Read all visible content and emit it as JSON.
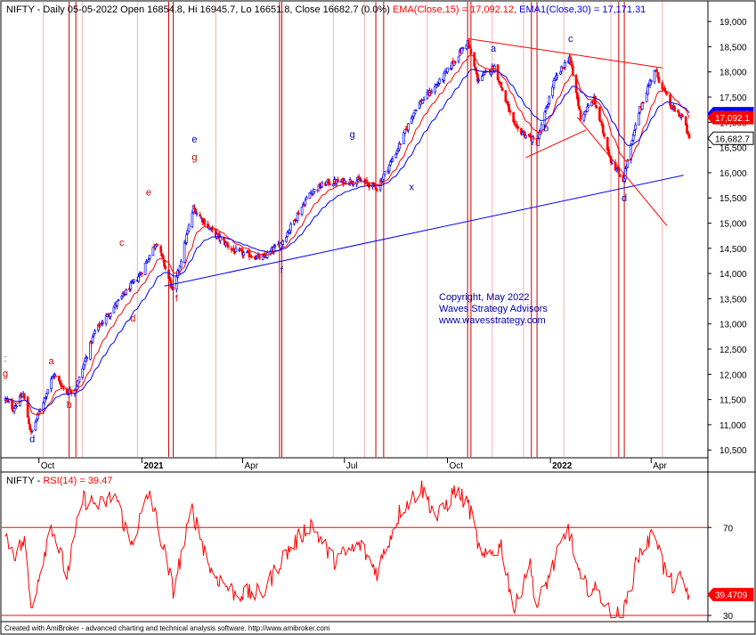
{
  "main_header": {
    "symbol": "NIFTY",
    "text": " - Daily 05-05-2022 Open 16854.8, Hi 16945.7, Lo 16651.8, Close 16682.7 (0.0%) ",
    "ema15_text": "EMA(Close,15) = 17,092.12,",
    "ema30_text": " EMA1(Close,30) = 17,171.31"
  },
  "rsi_header": {
    "symbol": "NIFTY",
    "sep": " - ",
    "rsi_text": "RSI(14) = 39.47"
  },
  "copyright": [
    "Copyright, May 2022",
    "Waves Strategy Advisors",
    "www.wavesstrategy.com"
  ],
  "footer": "Created with AmiBroker - advanced charting and technical analysis software. http://www.amibroker.com",
  "colors": {
    "up_candle": "#0000ff",
    "down_candle": "#ff0000",
    "ema15": "#ff0000",
    "ema30": "#0000ff",
    "rsi": "#ff0000",
    "cycle_line": "#cc0000",
    "wave_label_red": "#cc0000",
    "wave_label_blue": "#0000aa"
  },
  "chart_data": [
    {
      "type": "candlestick",
      "title": "NIFTY - Daily 05-05-2022 Open 16854.8, Hi 16945.7, Lo 16651.8, Close 16682.7 (0.0%)",
      "x_ticks": [
        "Oct",
        "2021",
        "Apr",
        "Jul",
        "Oct",
        "2022",
        "Apr"
      ],
      "y_ticks": [
        10500,
        11000,
        11500,
        12000,
        12500,
        13000,
        13500,
        14000,
        14500,
        15000,
        15500,
        16000,
        16500,
        17000,
        17500,
        18000,
        18500,
        19000
      ],
      "y_tick_labels": [
        "10,500",
        "11,000",
        "11,500",
        "12,000",
        "12,500",
        "13,000",
        "13,500",
        "14,000",
        "14,500",
        "15,000",
        "15,500",
        "16,000",
        "16,500",
        "17,000",
        "17,500",
        "18,000",
        "18,500",
        "19,000"
      ],
      "ylim": [
        10380,
        19250
      ],
      "x_range_days": [
        "2020-09-01",
        "2022-05-05"
      ],
      "price_anchors": [
        [
          "2020-09-01",
          11500
        ],
        [
          "2020-09-08",
          11320
        ],
        [
          "2020-09-17",
          11610
        ],
        [
          "2020-09-24",
          10820
        ],
        [
          "2020-10-14",
          12000
        ],
        [
          "2020-10-26",
          11650
        ],
        [
          "2020-11-03",
          11720
        ],
        [
          "2020-11-20",
          12850
        ],
        [
          "2020-12-04",
          13250
        ],
        [
          "2020-12-31",
          14000
        ],
        [
          "2021-01-14",
          14640
        ],
        [
          "2021-01-29",
          13630
        ],
        [
          "2021-02-16",
          15300
        ],
        [
          "2021-03-04",
          14850
        ],
        [
          "2021-03-24",
          14450
        ],
        [
          "2021-04-19",
          14300
        ],
        [
          "2021-05-06",
          14620
        ],
        [
          "2021-05-31",
          15600
        ],
        [
          "2021-06-15",
          15800
        ],
        [
          "2021-07-14",
          15850
        ],
        [
          "2021-07-30",
          15700
        ],
        [
          "2021-08-16",
          16400
        ],
        [
          "2021-09-03",
          17300
        ],
        [
          "2021-09-24",
          17800
        ],
        [
          "2021-10-19",
          18600
        ],
        [
          "2021-10-28",
          17850
        ],
        [
          "2021-11-12",
          18100
        ],
        [
          "2021-11-30",
          16900
        ],
        [
          "2021-12-20",
          16600
        ],
        [
          "2022-01-04",
          17800
        ],
        [
          "2022-01-18",
          18300
        ],
        [
          "2022-01-28",
          17100
        ],
        [
          "2022-02-09",
          17450
        ],
        [
          "2022-02-24",
          16250
        ],
        [
          "2022-03-07",
          15850
        ],
        [
          "2022-03-21",
          17200
        ],
        [
          "2022-04-04",
          18050
        ],
        [
          "2022-04-19",
          17300
        ],
        [
          "2022-04-29",
          17100
        ],
        [
          "2022-05-05",
          16682.7
        ]
      ],
      "last_close": 16682.7,
      "price_labels": [
        {
          "value": 17171.3,
          "text": "17,171.3",
          "color": "#0000ff"
        },
        {
          "value": 17092.1,
          "text": "17,092.1",
          "color": "#ff0000"
        },
        {
          "value": 16682.7,
          "text": "16,682.7",
          "color": "#000000"
        }
      ],
      "series": [
        {
          "name": "EMA(Close,15)",
          "value": 17092.12
        },
        {
          "name": "EMA1(Close,30)",
          "value": 17171.31
        }
      ],
      "cycle_dates": [
        "2020-10-28",
        "2020-11-03",
        "2021-01-25",
        "2021-01-29",
        "2021-05-04",
        "2021-05-06",
        "2021-07-29",
        "2021-08-05",
        "2021-10-19",
        "2021-10-22",
        "2021-12-15",
        "2021-12-20",
        "2022-03-03",
        "2022-03-08"
      ],
      "faint_cycle_dates": [
        "2020-10-05",
        "2020-11-09",
        "2020-12-28",
        "2021-03-08",
        "2021-06-21",
        "2021-07-19",
        "2021-09-13",
        "2021-11-10",
        "2021-12-08",
        "2022-01-13",
        "2022-02-24",
        "2022-04-11"
      ],
      "trendlines": [
        {
          "color": "#0000ff",
          "from": [
            "2021-01-21",
            13750
          ],
          "to": [
            "2022-04-30",
            15950
          ]
        },
        {
          "color": "#ff0000",
          "from": [
            "2021-10-19",
            18660
          ],
          "to": [
            "2022-04-11",
            18080
          ]
        },
        {
          "color": "#ff0000",
          "from": [
            "2021-12-10",
            16300
          ],
          "to": [
            "2022-02-02",
            16850
          ]
        },
        {
          "color": "#ff0000",
          "from": [
            "2022-01-25",
            17100
          ],
          "to": [
            "2022-04-15",
            14950
          ]
        }
      ],
      "wave_labels": [
        {
          "text": ":",
          "date": "2020-09-01",
          "price": 12250,
          "color": "red"
        },
        {
          "text": "g",
          "date": "2020-09-01",
          "price": 11950,
          "color": "red"
        },
        {
          "text": "d",
          "date": "2020-09-25",
          "price": 10650,
          "color": "blue"
        },
        {
          "text": "a",
          "date": "2020-10-12",
          "price": 12200,
          "color": "red"
        },
        {
          "text": "b",
          "date": "2020-10-28",
          "price": 11330,
          "color": "red"
        },
        {
          "text": "c",
          "date": "2020-12-14",
          "price": 14550,
          "color": "red"
        },
        {
          "text": "d",
          "date": "2020-12-24",
          "price": 13050,
          "color": "red"
        },
        {
          "text": "e",
          "date": "2021-01-07",
          "price": 15550,
          "color": "red"
        },
        {
          "text": "f",
          "date": "2021-02-01",
          "price": 13450,
          "color": "red"
        },
        {
          "text": "e",
          "date": "2021-02-17",
          "price": 16600,
          "color": "blue"
        },
        {
          "text": "g",
          "date": "2021-02-17",
          "price": 16250,
          "color": "red"
        },
        {
          "text": "f",
          "date": "2021-05-06",
          "price": 14000,
          "color": "blue"
        },
        {
          "text": "g",
          "date": "2021-07-08",
          "price": 16700,
          "color": "blue"
        },
        {
          "text": "x",
          "date": "2021-08-30",
          "price": 15650,
          "color": "blue"
        },
        {
          "text": "a",
          "date": "2021-11-11",
          "price": 18400,
          "color": "blue"
        },
        {
          "text": "b",
          "date": "2021-12-28",
          "price": 16820,
          "color": "blue"
        },
        {
          "text": "c",
          "date": "2022-01-19",
          "price": 18600,
          "color": "blue"
        },
        {
          "text": "d",
          "date": "2022-03-08",
          "price": 15430,
          "color": "blue"
        }
      ]
    },
    {
      "type": "line",
      "title": "NIFTY - RSI(14) = 39.47",
      "series": [
        {
          "name": "RSI(14)",
          "last": 39.4709
        }
      ],
      "y_ticks": [
        30,
        70
      ],
      "ylim": [
        28,
        94
      ],
      "hlines": [
        70,
        30
      ],
      "value_label": "39.4709",
      "rsi_anchors": [
        [
          "2020-09-01",
          66
        ],
        [
          "2020-09-10",
          58
        ],
        [
          "2020-09-18",
          64
        ],
        [
          "2020-09-24",
          33
        ],
        [
          "2020-10-12",
          72
        ],
        [
          "2020-10-26",
          48
        ],
        [
          "2020-11-09",
          83
        ],
        [
          "2020-11-25",
          80
        ],
        [
          "2020-12-08",
          85
        ],
        [
          "2020-12-22",
          62
        ],
        [
          "2021-01-08",
          86
        ],
        [
          "2021-01-29",
          42
        ],
        [
          "2021-02-15",
          78
        ],
        [
          "2021-03-04",
          50
        ],
        [
          "2021-03-25",
          40
        ],
        [
          "2021-04-19",
          40
        ],
        [
          "2021-05-05",
          55
        ],
        [
          "2021-06-01",
          72
        ],
        [
          "2021-06-21",
          55
        ],
        [
          "2021-07-15",
          62
        ],
        [
          "2021-07-30",
          50
        ],
        [
          "2021-08-20",
          78
        ],
        [
          "2021-09-08",
          88
        ],
        [
          "2021-09-22",
          74
        ],
        [
          "2021-10-08",
          87
        ],
        [
          "2021-10-20",
          80
        ],
        [
          "2021-11-01",
          55
        ],
        [
          "2021-11-18",
          62
        ],
        [
          "2021-11-30",
          32
        ],
        [
          "2021-12-13",
          55
        ],
        [
          "2021-12-20",
          34
        ],
        [
          "2022-01-17",
          70
        ],
        [
          "2022-01-28",
          45
        ],
        [
          "2022-02-14",
          40
        ],
        [
          "2022-02-24",
          30
        ],
        [
          "2022-03-07",
          30
        ],
        [
          "2022-03-21",
          58
        ],
        [
          "2022-04-05",
          68
        ],
        [
          "2022-04-12",
          52
        ],
        [
          "2022-04-22",
          42
        ],
        [
          "2022-04-28",
          47
        ],
        [
          "2022-05-05",
          39.47
        ]
      ]
    }
  ]
}
